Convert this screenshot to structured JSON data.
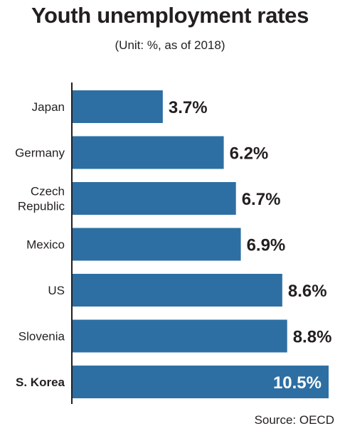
{
  "title": "Youth unemployment rates",
  "subtitle": "(Unit: %, as of 2018)",
  "source": "Source: OECD",
  "colors": {
    "bar": "#2e6fa3",
    "axis": "#231f20",
    "text": "#231f20"
  },
  "chart_data": {
    "type": "bar",
    "orientation": "horizontal",
    "title": "Youth unemployment rates",
    "subtitle": "(Unit: %, as of 2018)",
    "categories": [
      [
        "Japan"
      ],
      [
        "Germany"
      ],
      [
        "Czech",
        "Republic"
      ],
      [
        "Mexico"
      ],
      [
        "US"
      ],
      [
        "Slovenia"
      ],
      [
        "S. Korea"
      ]
    ],
    "values": [
      3.7,
      6.2,
      6.7,
      6.9,
      8.6,
      8.8,
      10.5
    ],
    "value_labels": [
      "3.7%",
      "6.2%",
      "6.7%",
      "6.9%",
      "8.6%",
      "8.8%",
      "10.5%"
    ],
    "highlight_category": "S. Korea",
    "xlim": [
      0,
      10.5
    ],
    "grid": false,
    "legend": "none"
  }
}
